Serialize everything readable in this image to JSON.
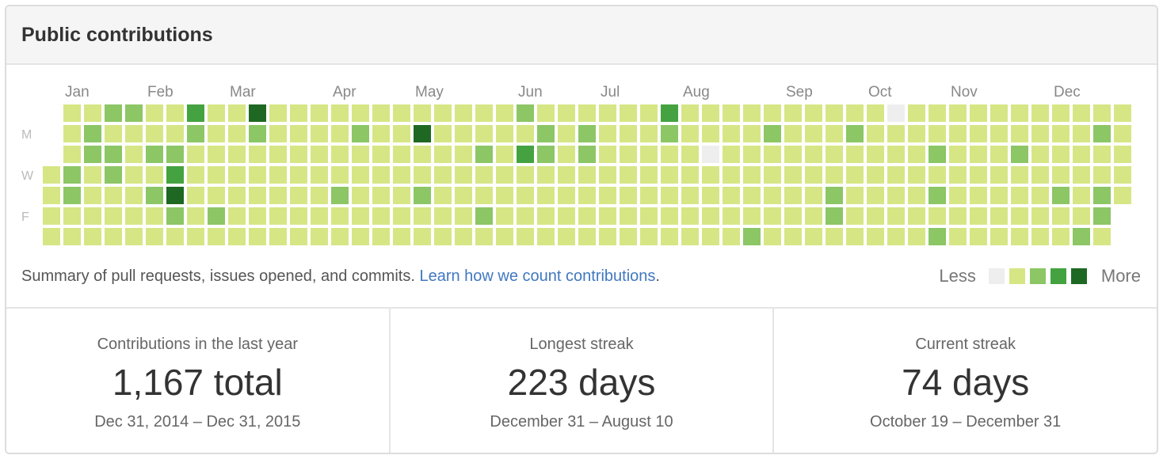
{
  "header": {
    "title": "Public contributions"
  },
  "graph": {
    "months": [
      {
        "label": "Jan",
        "week": 1
      },
      {
        "label": "Feb",
        "week": 5
      },
      {
        "label": "Mar",
        "week": 9
      },
      {
        "label": "Apr",
        "week": 14
      },
      {
        "label": "May",
        "week": 18
      },
      {
        "label": "Jun",
        "week": 23
      },
      {
        "label": "Jul",
        "week": 27
      },
      {
        "label": "Aug",
        "week": 31
      },
      {
        "label": "Sep",
        "week": 36
      },
      {
        "label": "Oct",
        "week": 40
      },
      {
        "label": "Nov",
        "week": 44
      },
      {
        "label": "Dec",
        "week": 49
      }
    ],
    "day_labels": [
      {
        "label": "M",
        "day": 1
      },
      {
        "label": "W",
        "day": 3
      },
      {
        "label": "F",
        "day": 5
      }
    ],
    "first_week_start_day": 3,
    "last_week_end_day": 4,
    "level_colors": [
      "#eeeeee",
      "#d6e685",
      "#8cc665",
      "#44a340",
      "#1e6823"
    ],
    "cells": {
      "1,3": 2,
      "1,4": 2,
      "2,1": 2,
      "2,2": 2,
      "3,0": 2,
      "3,3": 2,
      "3,2": 2,
      "4,0": 2,
      "5,2": 2,
      "5,4": 2,
      "6,2": 2,
      "6,5": 2,
      "7,1": 2,
      "8,5": 2,
      "10,1": 2,
      "14,4": 2,
      "15,1": 2,
      "18,4": 2,
      "21,2": 2,
      "21,5": 2,
      "23,0": 2,
      "24,1": 2,
      "24,2": 2,
      "26,1": 2,
      "26,2": 2,
      "30,1": 2,
      "34,6": 2,
      "35,1": 2,
      "38,4": 2,
      "38,5": 2,
      "39,1": 2,
      "43,2": 2,
      "43,4": 2,
      "43,6": 2,
      "47,2": 2,
      "49,4": 2,
      "50,6": 2,
      "51,1": 2,
      "51,4": 2,
      "51,5": 2,
      "7,0": 3,
      "6,3": 3,
      "23,2": 3,
      "30,0": 3,
      "10,0": 4,
      "6,4": 4,
      "18,1": 4,
      "41,0": 0,
      "32,2": 0
    }
  },
  "summary": {
    "text": "Summary of pull requests, issues opened, and commits. ",
    "link": "Learn how we count contributions",
    "suffix": "."
  },
  "legend": {
    "less": "Less",
    "more": "More"
  },
  "stats": [
    {
      "label": "Contributions in the last year",
      "value": "1,167 total",
      "range": "Dec 31, 2014 – Dec 31, 2015"
    },
    {
      "label": "Longest streak",
      "value": "223 days",
      "range": "December 31 – August 10"
    },
    {
      "label": "Current streak",
      "value": "74 days",
      "range": "October 19 – December 31"
    }
  ]
}
